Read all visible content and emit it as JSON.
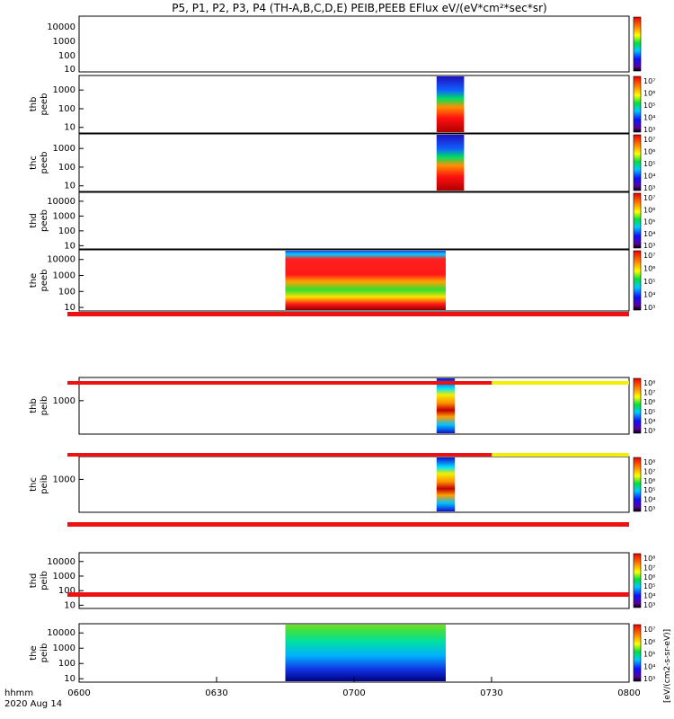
{
  "title": "P5, P1, P2, P3, P4 (TH-A,B,C,D,E) PEIB,PEEB EFlux eV/(eV*cm²*sec*sr)",
  "x_axis": {
    "label_line1": "hhmm",
    "label_line2": "2020 Aug 14",
    "ticks": [
      "0600",
      "0630",
      "0700",
      "0730",
      "0800"
    ]
  },
  "colorbar_label": "[eV/(cm2-s-sr-eV)]",
  "colors": {
    "background": "#ffffff",
    "saturation_red": "#ee1111",
    "saturation_yellow": "#f0f000"
  },
  "chart_data": [
    {
      "type": "heatmap",
      "name": "peeb",
      "probe": "thb",
      "ylabel": "thb peeb",
      "y_scale": "log",
      "yticks": [
        "10",
        "100",
        "1000"
      ],
      "cbar_ticks": [
        "10³",
        "10⁴",
        "10⁵",
        "10⁶",
        "10⁷"
      ],
      "ylim": [
        5,
        6000
      ],
      "active_time": [
        "0718",
        "0724"
      ]
    },
    {
      "type": "heatmap",
      "name": "peeb",
      "probe": "thc",
      "ylabel": "thc peeb",
      "y_scale": "log",
      "yticks": [
        "10",
        "100",
        "1000"
      ],
      "cbar_ticks": [
        "10³",
        "10⁴",
        "10⁵",
        "10⁶",
        "10⁷"
      ],
      "ylim": [
        5,
        6000
      ],
      "active_time": [
        "0718",
        "0724"
      ]
    },
    {
      "type": "heatmap",
      "name": "peeb",
      "probe": "thd",
      "ylabel": "thd peeb",
      "y_scale": "log",
      "yticks": [
        "10",
        "100",
        "1000",
        "10000"
      ],
      "cbar_ticks": [
        "10³",
        "10⁴",
        "10⁵",
        "10⁶",
        "10⁷"
      ],
      "ylim": [
        6,
        40000
      ],
      "active_time": null
    },
    {
      "type": "heatmap",
      "name": "peeb",
      "probe": "the",
      "ylabel": "the peeb",
      "y_scale": "log",
      "yticks": [
        "10",
        "100",
        "1000",
        "10000"
      ],
      "cbar_ticks": [
        "10³",
        "10⁴",
        "10⁵",
        "10⁶",
        "10⁷"
      ],
      "ylim": [
        6,
        40000
      ],
      "active_time": [
        "0645",
        "0720"
      ]
    },
    {
      "type": "heatmap",
      "name": "peib",
      "probe": "thb",
      "ylabel": "thb peib",
      "y_scale": "log",
      "yticks": [
        "1000"
      ],
      "cbar_ticks": [
        "10³",
        "10⁴",
        "10⁵",
        "10⁶",
        "10⁷",
        "10⁸"
      ],
      "ylim": [
        50,
        8000
      ],
      "active_time": [
        "0718",
        "0722"
      ]
    },
    {
      "type": "heatmap",
      "name": "peib",
      "probe": "thc",
      "ylabel": "thc peib",
      "y_scale": "log",
      "yticks": [
        "1000"
      ],
      "cbar_ticks": [
        "10³",
        "10⁴",
        "10⁵",
        "10⁶",
        "10⁷",
        "10⁸"
      ],
      "ylim": [
        50,
        8000
      ],
      "active_time": [
        "0718",
        "0722"
      ]
    },
    {
      "type": "heatmap",
      "name": "peib",
      "probe": "thd",
      "ylabel": "thd peib",
      "y_scale": "log",
      "yticks": [
        "10",
        "100",
        "1000",
        "10000"
      ],
      "cbar_ticks": [
        "10³",
        "10⁴",
        "10⁵",
        "10⁶",
        "10⁷",
        "10⁸"
      ],
      "ylim": [
        6,
        40000
      ],
      "active_time": null
    },
    {
      "type": "heatmap",
      "name": "peib",
      "probe": "the",
      "ylabel": "the peib",
      "y_scale": "log",
      "yticks": [
        "10",
        "100",
        "1000",
        "10000"
      ],
      "cbar_ticks": [
        "10³",
        "10⁴",
        "10⁵",
        "10⁶",
        "10⁷"
      ],
      "ylim": [
        6,
        40000
      ],
      "active_time": [
        "0645",
        "0720"
      ]
    }
  ]
}
